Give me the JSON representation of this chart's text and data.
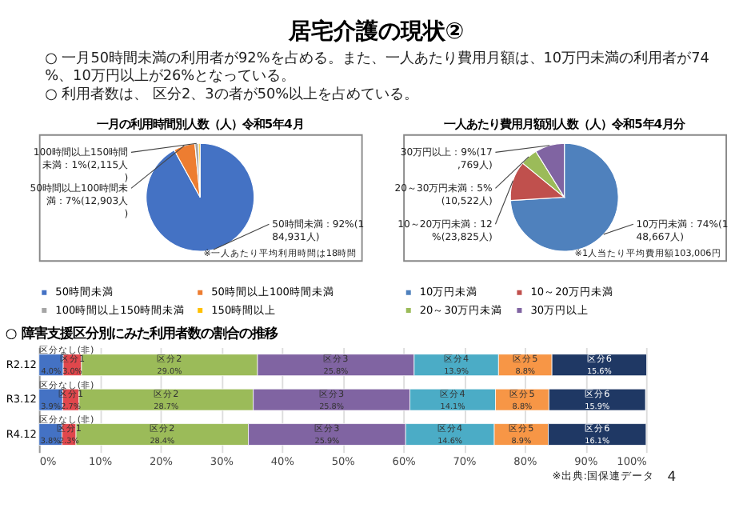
{
  "chart_data": [
    {
      "type": "other",
      "title": "居宅介護の現状②",
      "annotations": [
        "○ 一月50時間未満の利用者が92%を占める。また、一人あたり費用月額は、10万円未満の利用者が74%、10万円以上が26%となっている。",
        "○ 利用者数は、 区分2、3の者が50%以上を占めている。"
      ]
    },
    {
      "type": "pie",
      "title": "一月の利用時間別人数（人）令和5年4月",
      "categories": [
        "50時間未満",
        "50時間以上100時間未満",
        "100時間以上150時間未満",
        "150時間以上"
      ],
      "values": [
        184931,
        12903,
        2115,
        1000
      ],
      "colors": [
        "#4472c4",
        "#ed7d31",
        "#a5a5a5",
        "#ffc000"
      ],
      "value_labels": [
        "50時間未満：92%(184,931人)",
        "50時間以上100時間未満：7%(12,903人)",
        "100時間以上150時間未満：1%(2,115人)",
        null
      ],
      "legend": "bottom",
      "annotations": [
        "※一人あたり平均利用時間は18時間"
      ]
    },
    {
      "type": "pie",
      "title": "一人あたり費用月額別人数（人）令和5年4月分",
      "categories": [
        "10万円未満",
        "10～20万円未満",
        "20～30万円未満",
        "30万円以上"
      ],
      "values": [
        148667,
        23825,
        10522,
        17769
      ],
      "colors": [
        "#4f81bd",
        "#c0504d",
        "#9bbb59",
        "#8064a2"
      ],
      "value_labels": [
        "10万円未満：74%(148,667人)",
        "10～20万円未満：12%(23,825人)",
        "20～30万円未満：5%(10,522人)",
        "30万円以上：9%(17,769人)"
      ],
      "legend": "bottom",
      "annotations": [
        "※1人当たり平均費用額103,006円"
      ]
    },
    {
      "type": "bar",
      "orientation": "horizontal",
      "stacked": true,
      "title": "○ 障害支援区分別にみた利用者数の割合の推移",
      "categories": [
        "R2.12",
        "R3.12",
        "R4.12"
      ],
      "series": [
        {
          "name": "区分なし(非)",
          "color": "#4472c4",
          "values": [
            4.0,
            3.9,
            3.8
          ],
          "value_labels": [
            "4.0%",
            "3.9%",
            "3.8%"
          ]
        },
        {
          "name": "区分1",
          "color": "#e0474c",
          "values": [
            3.0,
            2.7,
            2.3
          ],
          "value_labels": [
            "3.0%",
            "2.7%",
            "2.3%"
          ]
        },
        {
          "name": "区分2",
          "color": "#9bbb59",
          "values": [
            29.0,
            28.7,
            28.4
          ],
          "value_labels": [
            "29.0%",
            "28.7%",
            "28.4%"
          ]
        },
        {
          "name": "区分3",
          "color": "#8064a2",
          "values": [
            25.8,
            25.8,
            25.9
          ],
          "value_labels": [
            "25.8%",
            "25.8%",
            "25.9%"
          ]
        },
        {
          "name": "区分4",
          "color": "#4bacc6",
          "values": [
            13.9,
            14.1,
            14.6
          ],
          "value_labels": [
            "13.9%",
            "14.1%",
            "14.6%"
          ]
        },
        {
          "name": "区分5",
          "color": "#f79646",
          "values": [
            8.8,
            8.8,
            8.9
          ],
          "value_labels": [
            "8.8%",
            "8.8%",
            "8.9%"
          ]
        },
        {
          "name": "区分6",
          "color": "#1f3864",
          "values": [
            15.6,
            15.9,
            16.1
          ],
          "value_labels": [
            "15.6%",
            "15.9%",
            "16.1%"
          ]
        }
      ],
      "xlim": [
        0,
        100
      ],
      "xticks": [
        {
          "value": 0,
          "label": "0%"
        },
        {
          "value": 10,
          "label": "10%"
        },
        {
          "value": 20,
          "label": "20%"
        },
        {
          "value": 30,
          "label": "30%"
        },
        {
          "value": 40,
          "label": "40%"
        },
        {
          "value": 50,
          "label": "50%"
        },
        {
          "value": 60,
          "label": "60%"
        },
        {
          "value": 70,
          "label": "70%"
        },
        {
          "value": 80,
          "label": "80%"
        },
        {
          "value": 90,
          "label": "90%"
        },
        {
          "value": 100,
          "label": "100%"
        }
      ],
      "grid": "x",
      "annotations": [
        "※出典:国保連データ",
        "4"
      ]
    }
  ]
}
